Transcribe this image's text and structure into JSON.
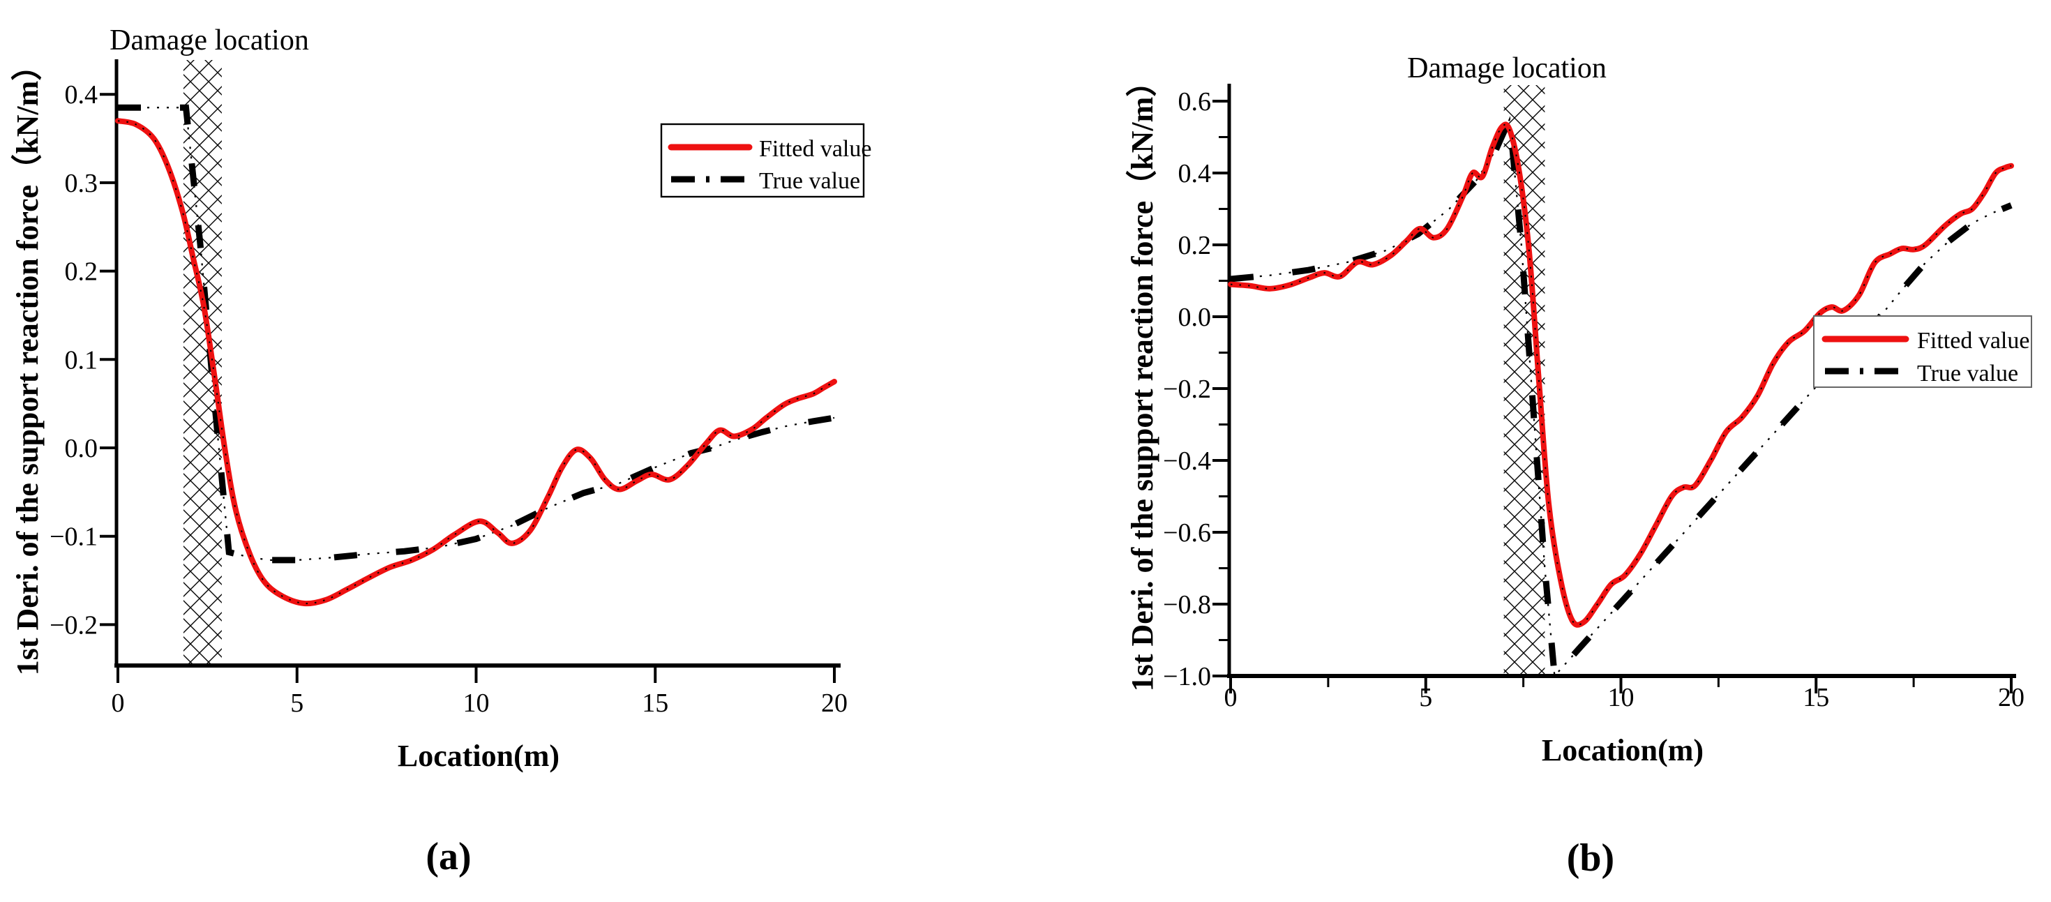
{
  "figure": {
    "background": "#ffffff",
    "description": "Two-panel line figure comparing fitted vs true 1st derivative of support reaction force along a beam, with hatched damage-location bands"
  },
  "colors": {
    "fitted": "#ee1111",
    "true": "#000000",
    "axis": "#000000",
    "hatch": "#000000",
    "legend_border_a": "#000000",
    "legend_border_b": "#666666"
  },
  "chart_data": [
    {
      "type": "line",
      "panel_label": "(a)",
      "xlabel": "Location(m)",
      "ylabel": "1st Deri. of the support reaction force（kN/m）",
      "xlim": [
        0,
        20
      ],
      "ylim": [
        -0.246,
        0.44
      ],
      "grid": false,
      "legend_position": "upper right",
      "xticks": [
        0,
        5,
        10,
        15,
        20
      ],
      "xtick_labels": [
        "0",
        "5",
        "10",
        "15",
        "20"
      ],
      "yticks": [
        0.4,
        0.3,
        0.2,
        0.1,
        0.0,
        -0.1,
        -0.2
      ],
      "ytick_labels": [
        "0.4",
        "0.3",
        "0.2",
        "0.1",
        "0.0",
        "−0.1",
        "−0.2"
      ],
      "xminor": [],
      "yminor": [],
      "damage_band": {
        "x0": 1.83,
        "x1": 2.9,
        "label": "Damage location"
      },
      "series": [
        {
          "name": "Fitted value",
          "style": "solid",
          "color": "#ee1111",
          "x": [
            0,
            0.5,
            1.0,
            1.4,
            1.8,
            2.1,
            2.4,
            2.7,
            3.0,
            3.3,
            3.7,
            4.1,
            4.6,
            5.2,
            5.8,
            6.4,
            7.0,
            7.6,
            8.2,
            8.8,
            9.4,
            10.1,
            10.6,
            11.0,
            11.5,
            12.0,
            12.4,
            12.8,
            13.2,
            13.6,
            14.0,
            14.5,
            14.9,
            15.4,
            15.9,
            16.4,
            16.8,
            17.2,
            17.7,
            18.1,
            18.6,
            19.0,
            19.4,
            19.7,
            20.0
          ],
          "y": [
            0.37,
            0.366,
            0.35,
            0.318,
            0.268,
            0.215,
            0.16,
            0.08,
            -0.005,
            -0.072,
            -0.122,
            -0.152,
            -0.168,
            -0.176,
            -0.172,
            -0.16,
            -0.147,
            -0.135,
            -0.127,
            -0.115,
            -0.098,
            -0.083,
            -0.096,
            -0.108,
            -0.094,
            -0.056,
            -0.022,
            -0.002,
            -0.012,
            -0.036,
            -0.047,
            -0.037,
            -0.03,
            -0.036,
            -0.02,
            0.004,
            0.02,
            0.013,
            0.021,
            0.034,
            0.049,
            0.056,
            0.061,
            0.068,
            0.075
          ]
        },
        {
          "name": "True value",
          "style": "dash-dot",
          "color": "#000000",
          "x": [
            0,
            1.0,
            1.9,
            2.3,
            2.7,
            3.1,
            3.6,
            4.2,
            5.0,
            6.0,
            7.0,
            8.0,
            9.0,
            10.0,
            11.0,
            12.0,
            13.0,
            14.0,
            15.0,
            16.0,
            16.6,
            17.3,
            18.0,
            18.7,
            19.4,
            20.0
          ],
          "y": [
            0.385,
            0.385,
            0.385,
            0.23,
            0.05,
            -0.118,
            -0.123,
            -0.127,
            -0.127,
            -0.124,
            -0.12,
            -0.117,
            -0.112,
            -0.103,
            -0.088,
            -0.068,
            -0.051,
            -0.04,
            -0.022,
            -0.006,
            0.0,
            0.01,
            0.018,
            0.025,
            0.03,
            0.034
          ]
        }
      ]
    },
    {
      "type": "line",
      "panel_label": "(b)",
      "xlabel": "Location(m)",
      "ylabel": "1st Deri. of the support reaction force（kN/m）",
      "xlim": [
        0,
        20
      ],
      "ylim": [
        -1.0,
        0.65
      ],
      "grid": false,
      "legend_position": "middle right",
      "xticks": [
        0,
        5,
        10,
        15,
        20
      ],
      "xtick_labels": [
        "0",
        "5",
        "10",
        "15",
        "20"
      ],
      "yticks": [
        0.6,
        0.4,
        0.2,
        0.0,
        -0.2,
        -0.4,
        -0.6,
        -0.8,
        -1.0
      ],
      "ytick_labels": [
        "0.6",
        "0.4",
        "0.2",
        "0.0",
        "−0.2",
        "−0.4",
        "−0.6",
        "−0.8",
        "−1.0"
      ],
      "xminor": [
        2.5,
        7.5,
        12.5,
        17.5
      ],
      "yminor": [
        0.5,
        0.3,
        0.1,
        -0.1,
        -0.3,
        -0.5,
        -0.7,
        -0.9
      ],
      "damage_band": {
        "x0": 7.0,
        "x1": 8.05,
        "label": "Damage location"
      },
      "series": [
        {
          "name": "Fitted value",
          "style": "solid",
          "color": "#ee1111",
          "x": [
            0,
            0.5,
            1.0,
            1.5,
            2.0,
            2.4,
            2.8,
            3.25,
            3.65,
            4.1,
            4.5,
            4.85,
            5.2,
            5.55,
            5.95,
            6.2,
            6.45,
            6.7,
            6.95,
            7.15,
            7.4,
            7.65,
            7.9,
            8.15,
            8.45,
            8.75,
            9.05,
            9.4,
            9.75,
            10.1,
            10.5,
            10.9,
            11.3,
            11.6,
            11.9,
            12.3,
            12.7,
            13.1,
            13.5,
            13.9,
            14.3,
            14.7,
            15.1,
            15.4,
            15.7,
            16.1,
            16.5,
            16.9,
            17.2,
            17.5,
            17.8,
            18.3,
            18.7,
            19.0,
            19.3,
            19.6,
            19.85,
            20.0
          ],
          "y": [
            0.09,
            0.086,
            0.078,
            0.088,
            0.108,
            0.122,
            0.112,
            0.152,
            0.145,
            0.17,
            0.21,
            0.245,
            0.22,
            0.245,
            0.335,
            0.4,
            0.39,
            0.47,
            0.528,
            0.52,
            0.4,
            0.18,
            -0.18,
            -0.52,
            -0.73,
            -0.845,
            -0.85,
            -0.8,
            -0.745,
            -0.72,
            -0.66,
            -0.58,
            -0.5,
            -0.475,
            -0.47,
            -0.4,
            -0.32,
            -0.28,
            -0.22,
            -0.13,
            -0.07,
            -0.04,
            0.01,
            0.027,
            0.017,
            0.06,
            0.15,
            0.175,
            0.19,
            0.187,
            0.2,
            0.253,
            0.286,
            0.3,
            0.344,
            0.4,
            0.415,
            0.42
          ]
        },
        {
          "name": "True value",
          "style": "dash-dot",
          "color": "#000000",
          "x": [
            0,
            1.0,
            2.0,
            3.0,
            4.0,
            4.8,
            5.6,
            6.3,
            6.8,
            7.15,
            7.45,
            7.75,
            8.05,
            8.3,
            9.0,
            10.0,
            11.0,
            12.0,
            13.0,
            14.0,
            15.0,
            16.0,
            16.6,
            17.2,
            17.8,
            18.4,
            19.0,
            19.5,
            20.0
          ],
          "y": [
            0.105,
            0.115,
            0.13,
            0.152,
            0.185,
            0.23,
            0.3,
            0.38,
            0.465,
            0.55,
            0.2,
            -0.25,
            -0.7,
            -1.0,
            -0.915,
            -0.795,
            -0.675,
            -0.555,
            -0.435,
            -0.315,
            -0.195,
            -0.08,
            -0.005,
            0.075,
            0.15,
            0.21,
            0.26,
            0.288,
            0.31
          ]
        }
      ]
    }
  ]
}
